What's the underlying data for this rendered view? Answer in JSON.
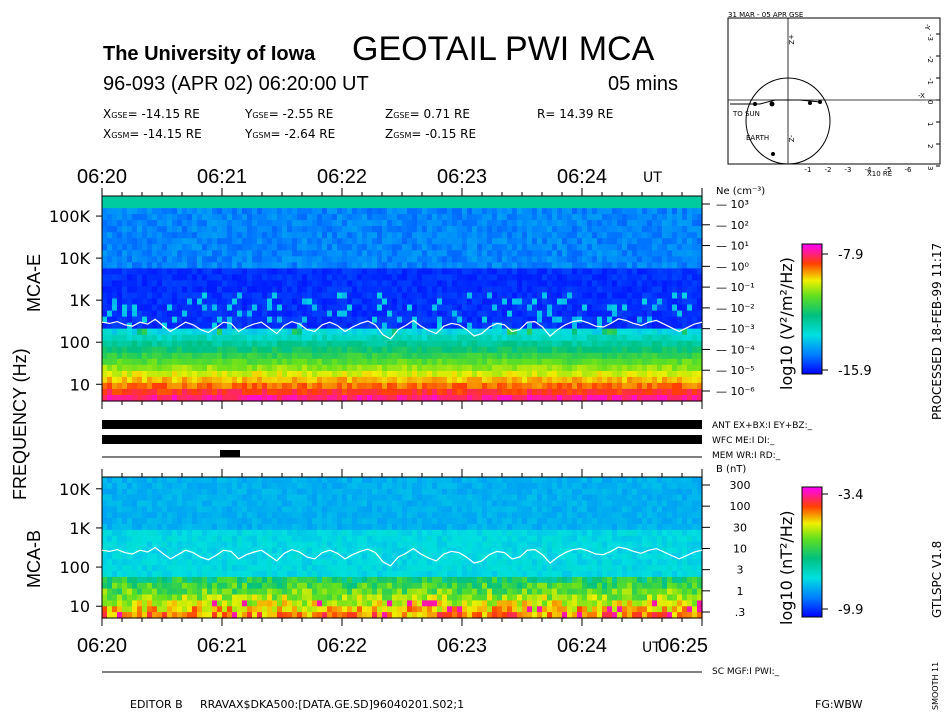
{
  "header": {
    "institution": "The University of Iowa",
    "instrument": "GEOTAIL PWI MCA",
    "date_line": "96-093 (APR 02) 06:20:00 UT",
    "duration": "05 mins",
    "gse": {
      "x_label": "X",
      "x_sub": "GSE",
      "x_val": "= -14.15 RE",
      "y_label": "Y",
      "y_sub": "GSE",
      "y_val": "= -2.55 RE",
      "z_label": "Z",
      "z_sub": "GSE",
      "z_val": "= 0.71 RE",
      "r": "R= 14.39 RE"
    },
    "gsm": {
      "x_label": "X",
      "x_sub": "GSM",
      "x_val": "= -14.15 RE",
      "y_label": "Y",
      "y_sub": "GSM",
      "y_val": "= -2.64 RE",
      "z_label": "Z",
      "z_sub": "GSM",
      "z_val": "= -0.15 RE"
    }
  },
  "orbit": {
    "title": "31 MAR - 05 APR GSE",
    "to_sun": "TO SUN",
    "earth": "EARTH",
    "x_unit": "X10 RE",
    "x_label": "-X",
    "y_label": "-Y",
    "z_label": "+Z",
    "z_label2": "-Z",
    "right_ticks": [
      "-3",
      "-2",
      "-1",
      "0",
      "1",
      "2",
      "3"
    ],
    "bottom_ticks": [
      "-1",
      "-2",
      "-3",
      "-4",
      "-5",
      "-6"
    ]
  },
  "time_axis": {
    "top_labels": [
      "06:20",
      "06:21",
      "06:22",
      "06:23",
      "06:24"
    ],
    "top_unit": "UT",
    "bottom_labels": [
      "06:20",
      "06:21",
      "06:22",
      "06:23",
      "06:24"
    ],
    "bottom_unit": "UT",
    "bottom_end": "06:25"
  },
  "labels": {
    "mca_e": "MCA-E",
    "mca_b": "MCA-B",
    "frequency": "FREQUENCY (Hz)",
    "ne": "Ne (cm⁻³)",
    "b": "B (nT)"
  },
  "status": {
    "ant": "ANT EX+BX:I  EY+BZ:_",
    "wfc": "WFC ME:I    DI:_",
    "mem": "MEM WR:I    RD:_",
    "sc": "SC MGF:I   PWI:_"
  },
  "colorbars": {
    "e_label": "log10 (V²/m²/Hz)",
    "e_max": "-7.9",
    "e_min": "-15.9",
    "b_label": "log10 (nT²/Hz)",
    "b_max": "-3.4",
    "b_min": "-9.9"
  },
  "side_text": {
    "processed": "PROCESSED 18-FEB-99  11:17",
    "version": "GTLSPC  V1.8",
    "smooth": "SMOOTH 11"
  },
  "footer": {
    "editor": "EDITOR B",
    "path": "RRAVAX$DKA500:[DATA.GE.SD]96040201.S02;1",
    "fg": "FG:WBW"
  },
  "chart_data": [
    {
      "type": "heatmap",
      "name": "MCA-E",
      "x_range": [
        "06:20",
        "06:25"
      ],
      "y_scale": "log",
      "y_tick_labels": [
        "10",
        "100",
        "1K",
        "10K",
        "100K"
      ],
      "right_axis_label": "Ne (cm⁻³)",
      "right_tick_labels": [
        "10³",
        "10²",
        "10¹",
        "10⁰",
        "10⁻¹",
        "10⁻²",
        "10⁻³",
        "10⁻⁴",
        "10⁻⁵",
        "10⁻⁶"
      ],
      "colorbar_range": [
        -15.9,
        -7.9
      ],
      "colorbar_label": "log10 (V²/m²/Hz)",
      "overlay_line_hz": [
        300,
        280,
        310,
        260,
        240,
        300,
        270,
        350,
        250,
        180,
        230,
        300,
        260,
        200,
        170,
        220,
        300,
        280,
        180,
        230,
        270,
        300,
        220,
        160,
        250,
        310,
        270,
        200,
        180,
        260,
        300,
        250,
        180,
        230,
        280,
        320,
        260,
        150,
        120,
        200,
        250,
        330,
        240,
        190,
        160,
        240,
        280,
        260,
        200,
        140,
        160,
        230,
        280,
        260,
        180,
        200,
        300,
        310,
        230,
        140,
        200,
        260,
        310,
        330,
        290,
        240,
        230,
        280,
        360,
        330,
        280,
        250,
        300,
        330,
        270,
        220,
        180,
        220,
        270,
        300
      ]
    },
    {
      "type": "heatmap",
      "name": "MCA-B",
      "x_range": [
        "06:20",
        "06:25"
      ],
      "y_scale": "log",
      "y_tick_labels": [
        "10",
        "100",
        "1K",
        "10K"
      ],
      "right_axis_label": "B (nT)",
      "right_tick_labels": [
        "300",
        "100",
        "30",
        "10",
        "3",
        "1",
        ".3"
      ],
      "colorbar_range": [
        -9.9,
        -3.4
      ],
      "colorbar_label": "log10 (nT²/Hz)"
    }
  ]
}
